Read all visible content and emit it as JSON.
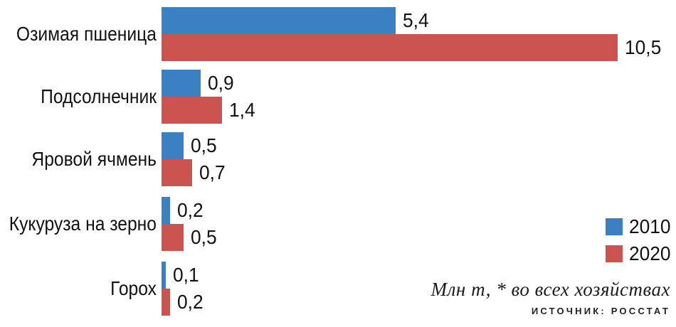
{
  "chart_data": {
    "type": "bar",
    "orientation": "horizontal",
    "title": "",
    "categories": [
      "Озимая пшеница",
      "Подсолнечник",
      "Яровой ячмень",
      "Кукуруза на зерно",
      "Горох"
    ],
    "series": [
      {
        "name": "2010",
        "color": "#3A80C3",
        "values": [
          5.4,
          0.9,
          0.5,
          0.2,
          0.1
        ],
        "labels": [
          "5,4",
          "0,9",
          "0,5",
          "0,2",
          "0,1"
        ]
      },
      {
        "name": "2020",
        "color": "#CC5450",
        "values": [
          10.5,
          1.4,
          0.7,
          0.5,
          0.2
        ],
        "labels": [
          "10,5",
          "1,4",
          "0,7",
          "0,5",
          "0,2"
        ]
      }
    ],
    "xlim": [
      0,
      11.8
    ],
    "grid": false,
    "legend_position": "right-middle",
    "value_labels": true,
    "unit_note": "Млн т, * во всех хозяйствах",
    "source": "ИСТОЧНИК: РОССТАТ"
  },
  "legend": {
    "items": [
      {
        "label": "2010",
        "color": "#3A80C3"
      },
      {
        "label": "2020",
        "color": "#CC5450"
      }
    ]
  },
  "footer": {
    "note": "Млн т, * во всех хозяйствах",
    "source": "ИСТОЧНИК: РОССТАТ"
  }
}
